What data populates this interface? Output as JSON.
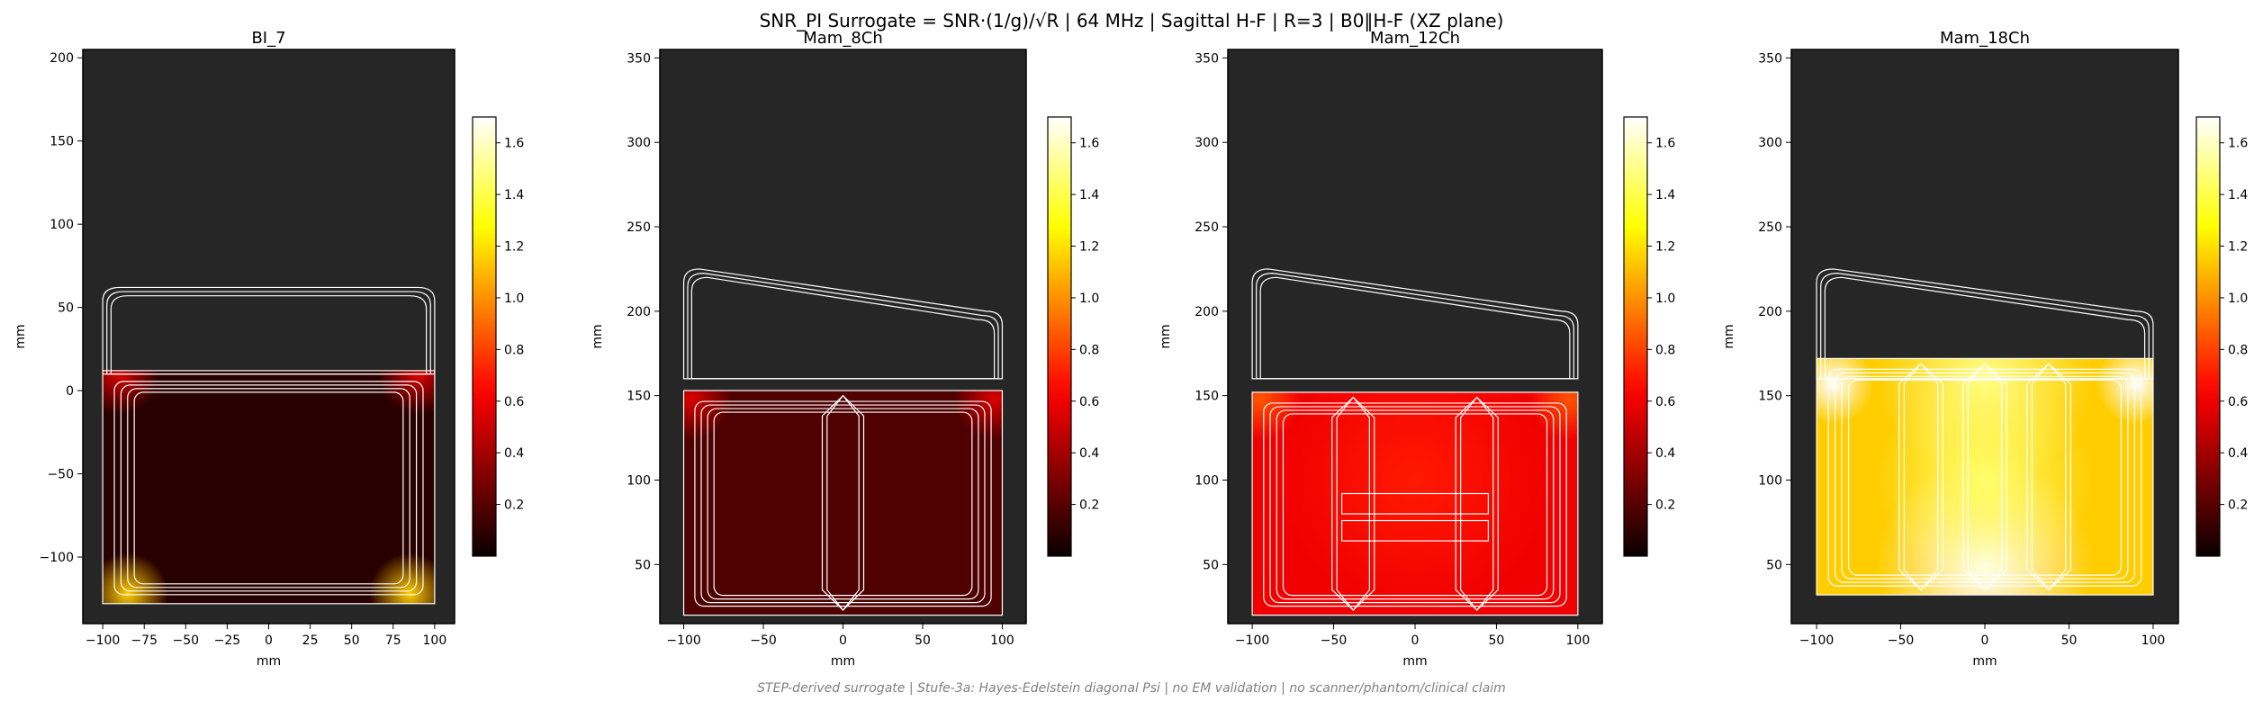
{
  "figure": {
    "title": "SNR_PI Surrogate = SNR·(1/g)/√R | 64 MHz | Sagittal H-F | R=3 | B0‖H-F (XZ plane)",
    "footer": "STEP-derived surrogate | Stufe-3a: Hayes-Edelstein diagonal Psi | no EM validation | no scanner/phantom/clinical claim",
    "colormap": "hot",
    "background_color": "#262626",
    "outline_color": "#ffffff"
  },
  "chart_data": [
    {
      "type": "heatmap",
      "title": "BI_7",
      "xlabel": "mm",
      "ylabel": "mm",
      "xlim": [
        -112,
        112
      ],
      "ylim": [
        -140,
        205
      ],
      "xticks": [
        -100,
        -75,
        -50,
        -25,
        0,
        25,
        50,
        75,
        100
      ],
      "yticks": [
        -100,
        -50,
        0,
        50,
        100,
        150,
        200
      ],
      "colorbar": {
        "min": 0,
        "max": 1.7,
        "ticks": [
          0.2,
          0.4,
          0.6,
          0.8,
          1.0,
          1.2,
          1.4,
          1.6
        ]
      },
      "field_region": {
        "x": [
          -100,
          100
        ],
        "y": [
          -128,
          12
        ]
      },
      "field_base_value": 0.08,
      "hotspots": [
        {
          "x": -85,
          "y": -122,
          "value": 1.15
        },
        {
          "x": 85,
          "y": -122,
          "value": 1.15
        },
        {
          "x": -90,
          "y": 10,
          "value": 0.55
        },
        {
          "x": 90,
          "y": 10,
          "value": 0.55
        }
      ]
    },
    {
      "type": "heatmap",
      "title": "Mam_8Ch",
      "xlabel": "mm",
      "ylabel": "mm",
      "xlim": [
        -115,
        115
      ],
      "ylim": [
        15,
        355
      ],
      "xticks": [
        -100,
        -50,
        0,
        50,
        100
      ],
      "yticks": [
        50,
        100,
        150,
        200,
        250,
        300,
        350
      ],
      "colorbar": {
        "min": 0,
        "max": 1.7,
        "ticks": [
          0.2,
          0.4,
          0.6,
          0.8,
          1.0,
          1.2,
          1.4,
          1.6
        ]
      },
      "field_region": {
        "x": [
          -100,
          100
        ],
        "y": [
          20,
          153
        ]
      },
      "field_base_value": 0.18,
      "hotspots": [
        {
          "x": -95,
          "y": 148,
          "value": 0.55
        },
        {
          "x": 95,
          "y": 148,
          "value": 0.55
        }
      ]
    },
    {
      "type": "heatmap",
      "title": "Mam_12Ch",
      "xlabel": "mm",
      "ylabel": "mm",
      "xlim": [
        -115,
        115
      ],
      "ylim": [
        15,
        355
      ],
      "xticks": [
        -100,
        -50,
        0,
        50,
        100
      ],
      "yticks": [
        50,
        100,
        150,
        200,
        250,
        300,
        350
      ],
      "colorbar": {
        "min": 0,
        "max": 1.7,
        "ticks": [
          0.2,
          0.4,
          0.6,
          0.8,
          1.0,
          1.2,
          1.4,
          1.6
        ]
      },
      "field_region": {
        "x": [
          -100,
          100
        ],
        "y": [
          20,
          152
        ]
      },
      "field_base_value": 0.6,
      "hotspots": [
        {
          "x": -95,
          "y": 148,
          "value": 0.85
        },
        {
          "x": 95,
          "y": 148,
          "value": 0.85
        },
        {
          "x": 0,
          "y": 100,
          "value": 0.7
        }
      ]
    },
    {
      "type": "heatmap",
      "title": "Mam_18Ch",
      "xlabel": "mm",
      "ylabel": "mm",
      "xlim": [
        -115,
        115
      ],
      "ylim": [
        15,
        355
      ],
      "xticks": [
        -100,
        -50,
        0,
        50,
        100
      ],
      "yticks": [
        50,
        100,
        150,
        200,
        250,
        300,
        350
      ],
      "colorbar": {
        "min": 0,
        "max": 1.7,
        "ticks": [
          0.2,
          0.4,
          0.6,
          0.8,
          1.0,
          1.2,
          1.4,
          1.6
        ]
      },
      "field_region": {
        "x": [
          -100,
          100
        ],
        "y": [
          32,
          172
        ]
      },
      "field_base_value": 1.15,
      "hotspots": [
        {
          "x": -90,
          "y": 157,
          "value": 1.7
        },
        {
          "x": 90,
          "y": 157,
          "value": 1.7
        },
        {
          "x": 0,
          "y": 160,
          "value": 1.5
        },
        {
          "x": 0,
          "y": 50,
          "value": 1.7
        },
        {
          "x": 0,
          "y": 100,
          "value": 1.45
        }
      ]
    }
  ]
}
